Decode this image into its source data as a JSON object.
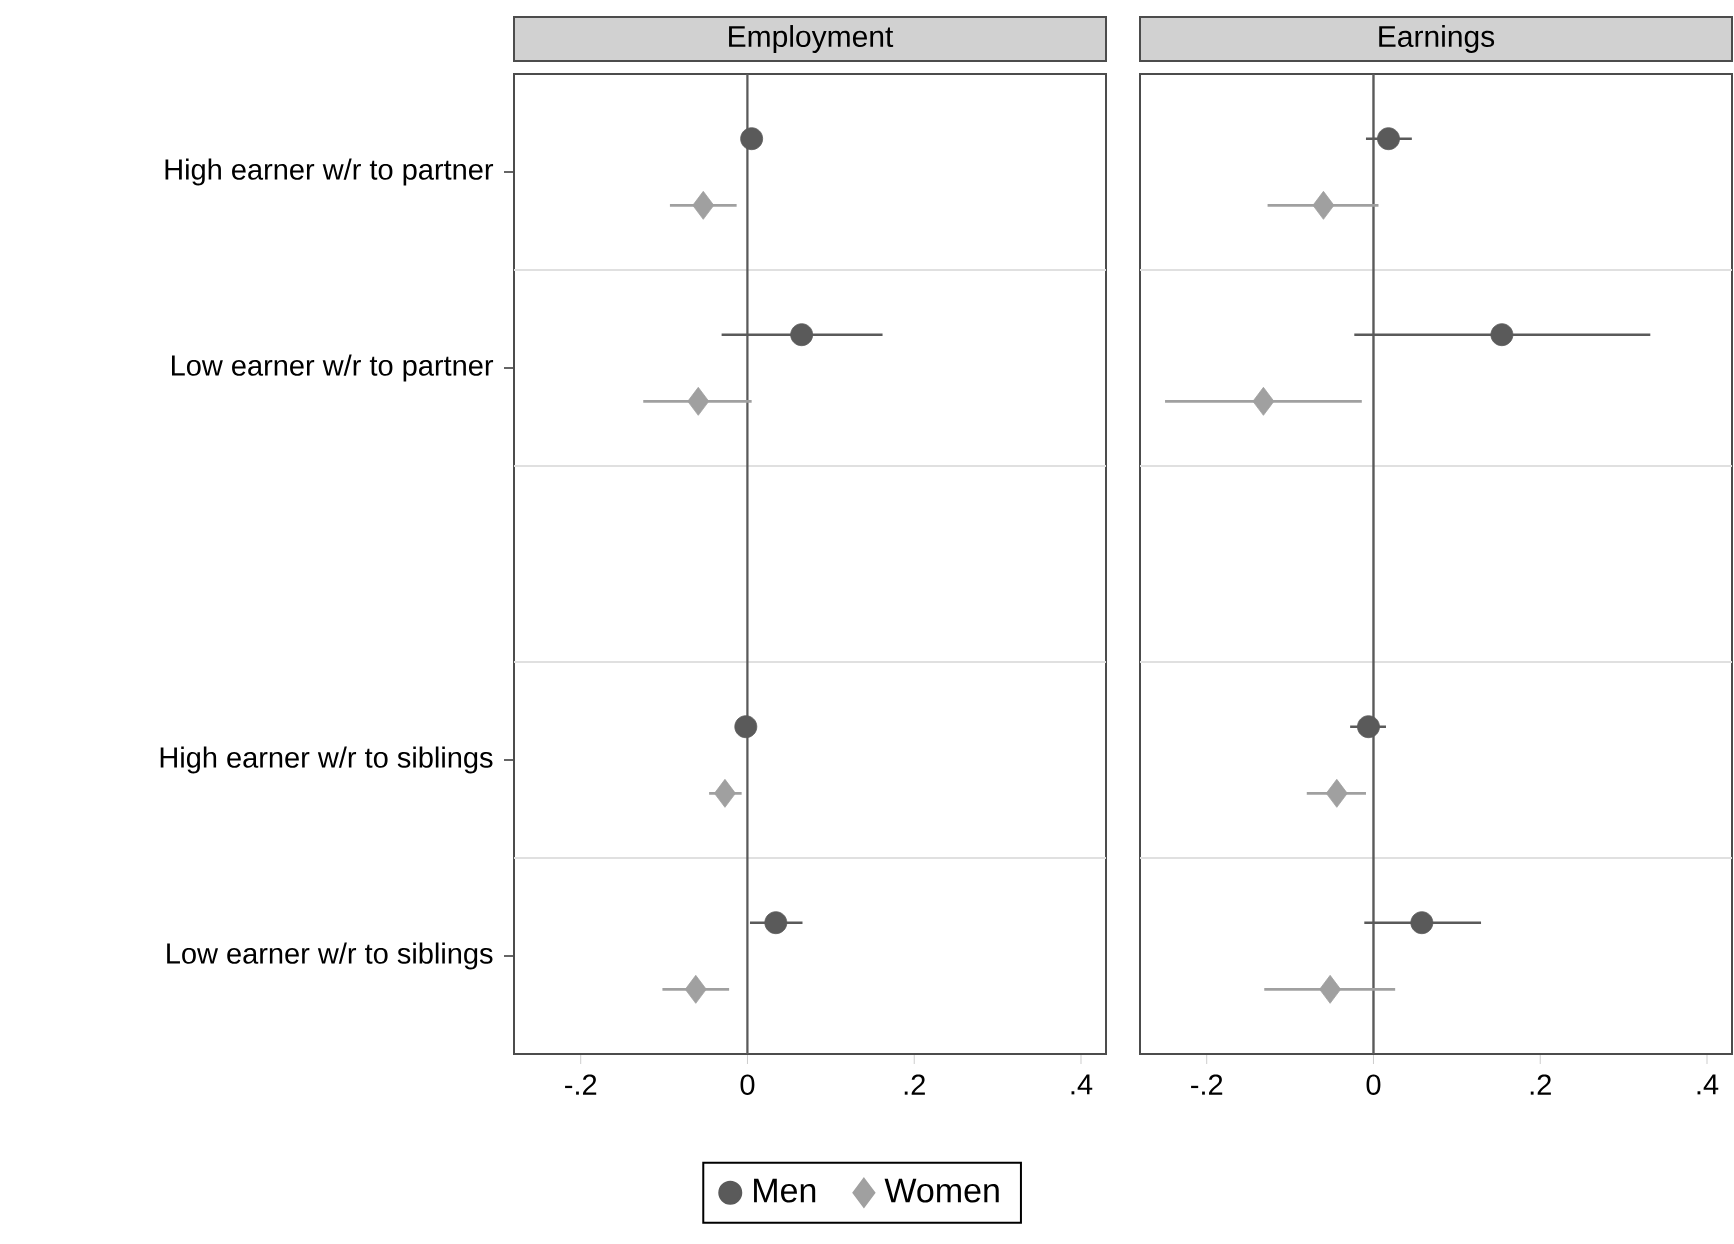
{
  "chart_data": [
    {
      "type": "scatter",
      "orientation": "horizontal",
      "title": "Employment",
      "categories": [
        "High earner w/r to partner",
        "Low earner w/r to partner",
        null,
        "High earner w/r to siblings",
        "Low earner w/r to siblings"
      ],
      "series": [
        {
          "name": "Men",
          "color": "#5a5a5a",
          "marker": "circle",
          "values": [
            0.005,
            0.065,
            null,
            -0.002,
            0.034
          ],
          "errors": [
            null,
            [
              -0.031,
              0.162
            ],
            null,
            null,
            [
              0.003,
              0.066
            ]
          ]
        },
        {
          "name": "Women",
          "color": "#a0a0a0",
          "marker": "diamond",
          "values": [
            -0.053,
            -0.059,
            null,
            -0.027,
            -0.062
          ],
          "errors": [
            [
              -0.093,
              -0.013
            ],
            [
              -0.125,
              0.005
            ],
            null,
            [
              -0.046,
              -0.007
            ],
            [
              -0.102,
              -0.022
            ]
          ]
        }
      ],
      "xlim": [
        -0.28,
        0.43
      ],
      "xticks": [
        {
          "value": -0.2,
          "label": "-.2"
        },
        0,
        {
          "value": 0.2,
          "label": ".2"
        },
        {
          "value": 0.4,
          "label": ".4"
        }
      ],
      "grid": "y",
      "legend": "bottom",
      "ref_lines": [
        {
          "axis": "x",
          "value": 0,
          "color": "#5a5a5a"
        }
      ]
    },
    {
      "type": "scatter",
      "orientation": "horizontal",
      "title": "Earnings",
      "categories": [
        null,
        null,
        null,
        null,
        null
      ],
      "series": [
        {
          "color": "#5a5a5a",
          "marker": "circle",
          "values": [
            0.018,
            0.154,
            null,
            -0.006,
            0.058
          ],
          "errors": [
            [
              -0.009,
              0.046
            ],
            [
              -0.023,
              0.332
            ],
            null,
            [
              -0.028,
              0.015
            ],
            [
              -0.011,
              0.129
            ]
          ]
        },
        {
          "color": "#a0a0a0",
          "marker": "diamond",
          "values": [
            -0.06,
            -0.132,
            null,
            -0.044,
            -0.052
          ],
          "errors": [
            [
              -0.127,
              0.006
            ],
            [
              -0.25,
              -0.014
            ],
            null,
            [
              -0.08,
              -0.009
            ],
            [
              -0.131,
              0.026
            ]
          ]
        }
      ],
      "xlim": [
        -0.28,
        0.43
      ],
      "xticks": [
        {
          "value": -0.2,
          "label": "-.2"
        },
        0,
        {
          "value": 0.2,
          "label": ".2"
        },
        {
          "value": 0.4,
          "label": ".4"
        }
      ],
      "grid": "y",
      "tick_labels": "x",
      "ref_lines": [
        {
          "axis": "x",
          "value": 0,
          "color": "#5a5a5a"
        }
      ]
    }
  ]
}
